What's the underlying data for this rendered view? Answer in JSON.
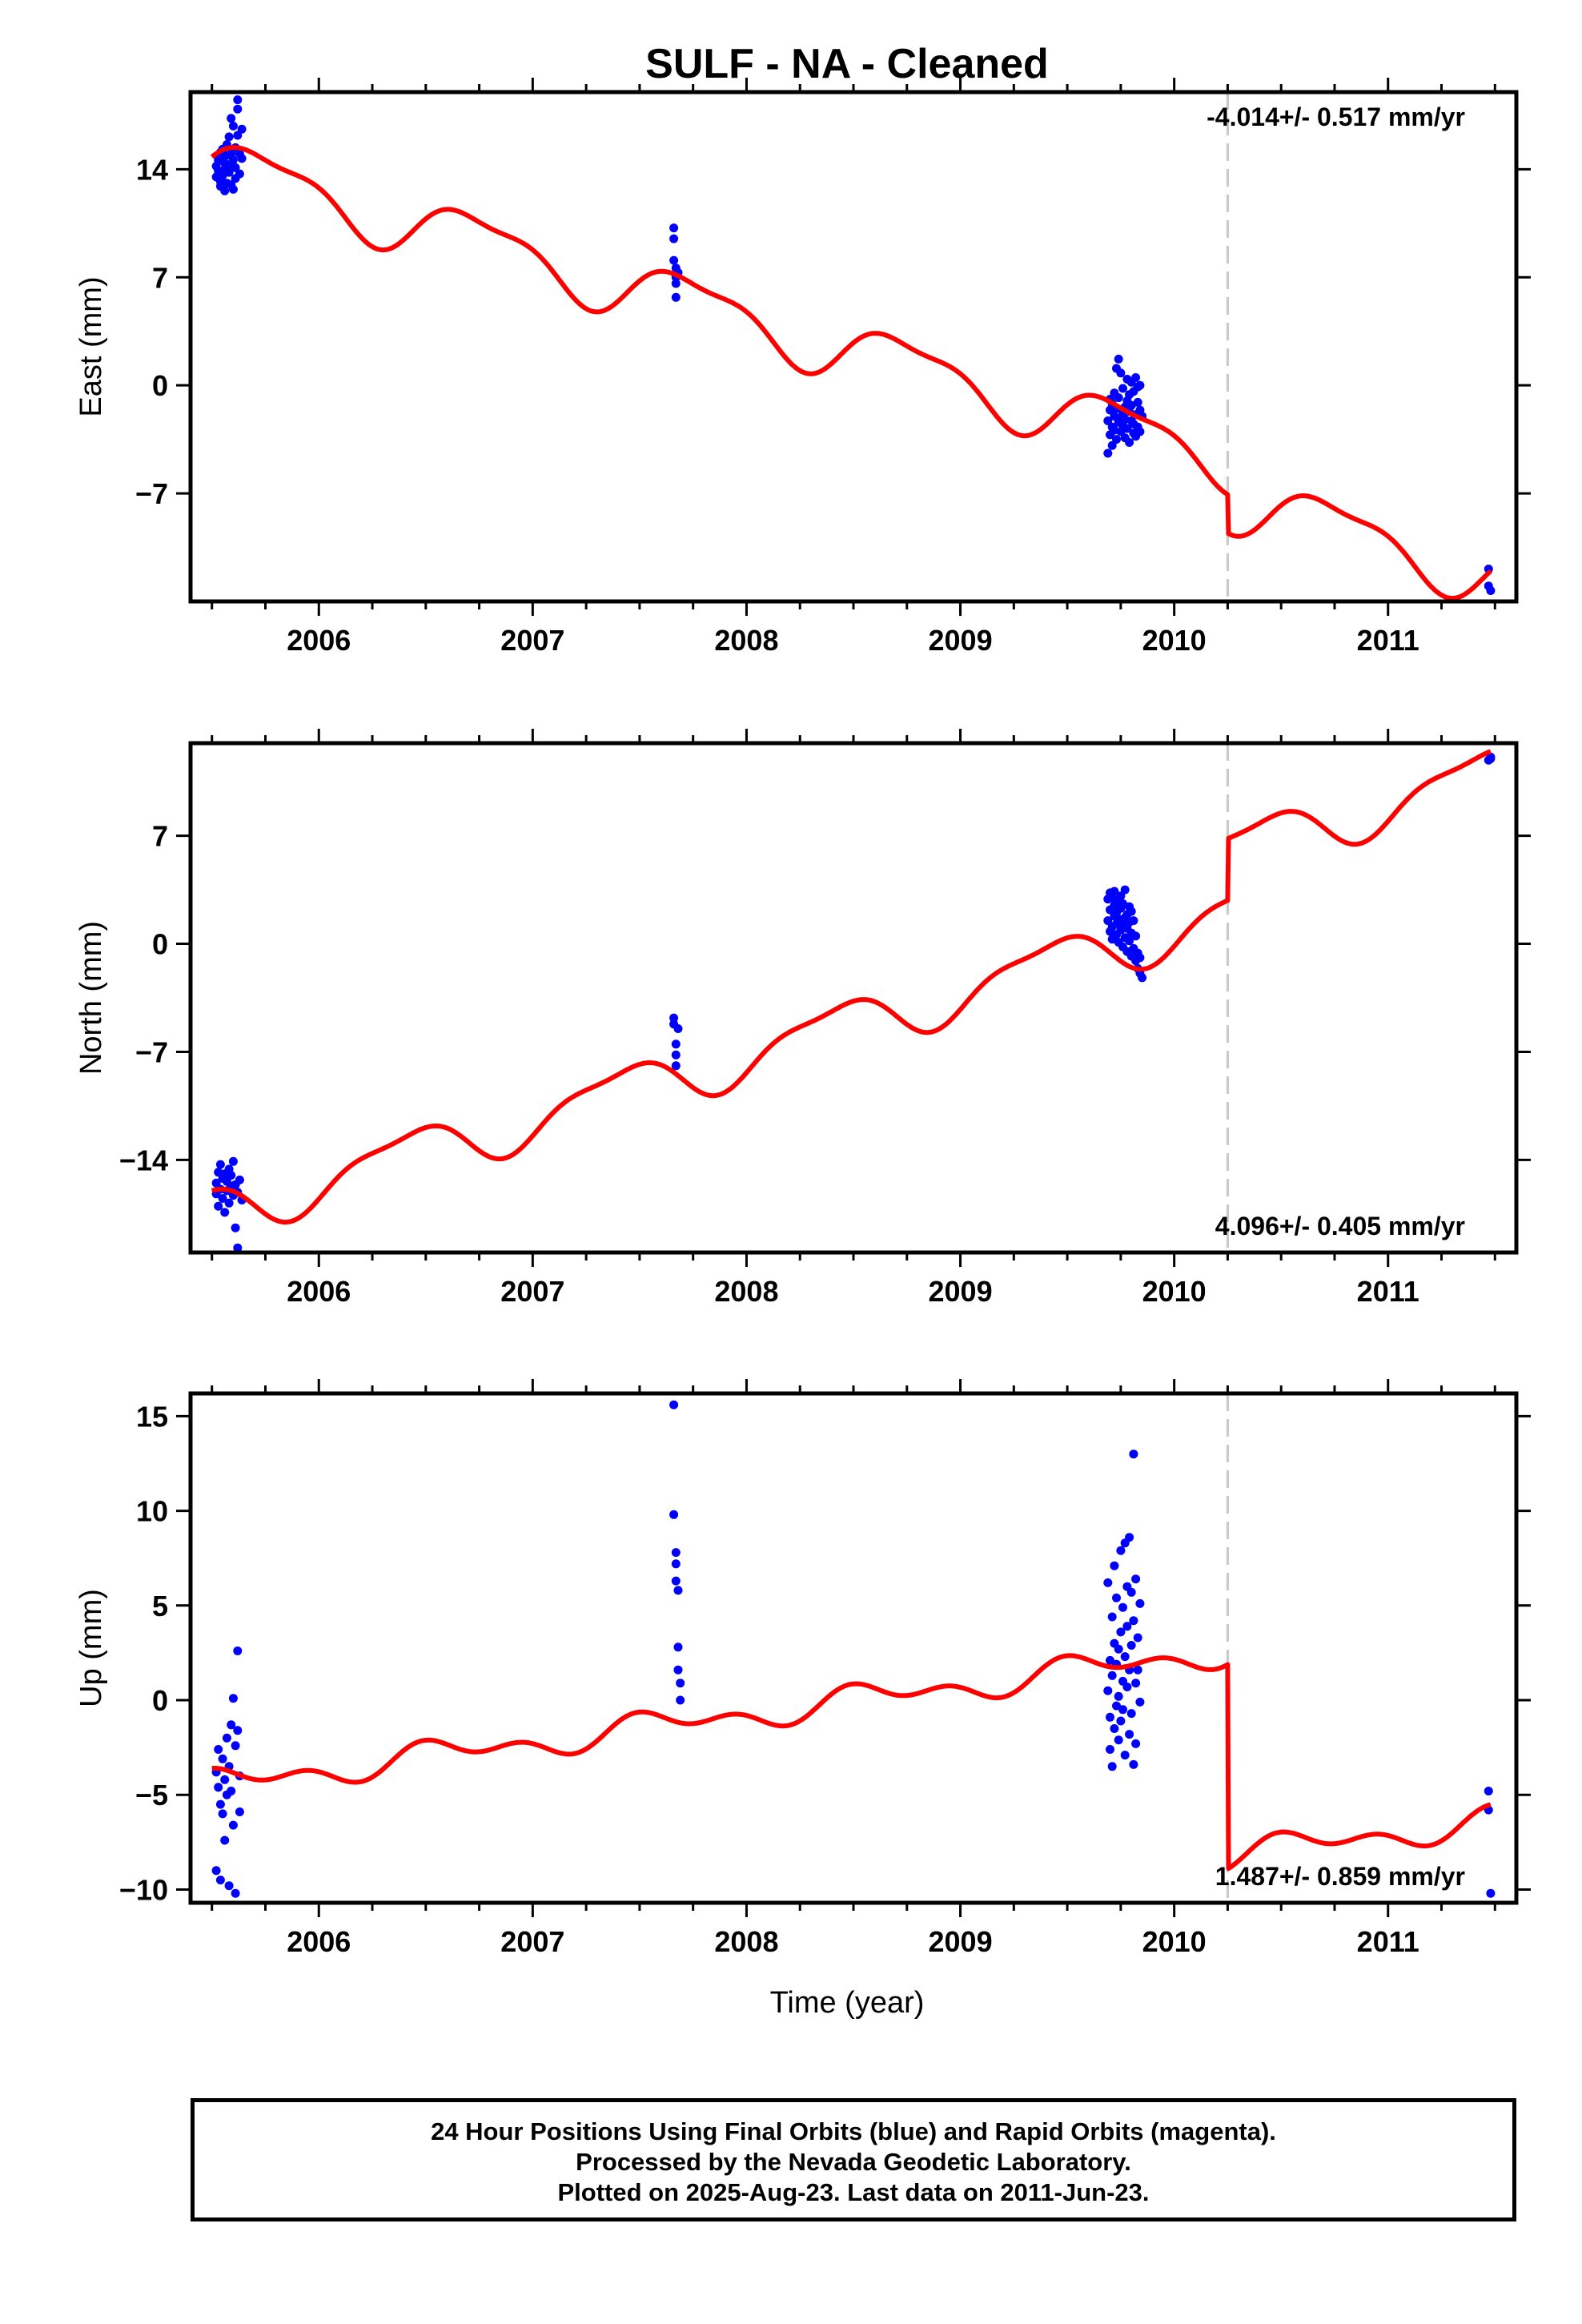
{
  "title": "SULF  - NA - Cleaned",
  "footer": {
    "line1": "24 Hour Positions Using Final Orbits (blue) and Rapid Orbits (magenta).",
    "line2": "Processed by the Nevada Geodetic Laboratory.",
    "line3": "Plotted on 2025-Aug-23. Last data on 2011-Jun-23."
  },
  "colors": {
    "data": "#0000ff",
    "model": "#ff0000",
    "step": "#c8c8c8",
    "axes": "#000000"
  },
  "chart_data": [
    {
      "type": "scatter",
      "panel": "east",
      "ylabel": "East (mm)",
      "xlim": [
        2005.4,
        2011.6
      ],
      "ylim": [
        -14,
        19
      ],
      "yticks": [
        -7,
        0,
        7,
        14
      ],
      "xticks": [
        2006,
        2007,
        2008,
        2009,
        2010,
        2011
      ],
      "grid": false,
      "rate_label": "-4.014+/- 0.517 mm/yr",
      "rate_label_position": "top-right",
      "step_x": 2010.25,
      "model": {
        "base": 14.8,
        "ref": 2005.5,
        "rate": -4.014,
        "a1": 1.8,
        "p1": 0.0,
        "a2": 0.6,
        "p2": 1.0,
        "step_at": 2010.25,
        "step": -2.5
      },
      "points": [
        [
          2005.52,
          13.5
        ],
        [
          2005.52,
          14.2
        ],
        [
          2005.53,
          13.9
        ],
        [
          2005.53,
          14.6
        ],
        [
          2005.54,
          12.9
        ],
        [
          2005.54,
          15.1
        ],
        [
          2005.54,
          13.2
        ],
        [
          2005.55,
          14.8
        ],
        [
          2005.55,
          13.6
        ],
        [
          2005.55,
          15.3
        ],
        [
          2005.56,
          14.0
        ],
        [
          2005.56,
          12.6
        ],
        [
          2005.56,
          14.4
        ],
        [
          2005.57,
          15.6
        ],
        [
          2005.57,
          13.1
        ],
        [
          2005.57,
          14.9
        ],
        [
          2005.58,
          13.8
        ],
        [
          2005.58,
          16.1
        ],
        [
          2005.58,
          14.3
        ],
        [
          2005.59,
          13.0
        ],
        [
          2005.59,
          15.0
        ],
        [
          2005.59,
          17.3
        ],
        [
          2005.6,
          14.6
        ],
        [
          2005.6,
          12.7
        ],
        [
          2005.6,
          16.8
        ],
        [
          2005.61,
          14.1
        ],
        [
          2005.61,
          15.4
        ],
        [
          2005.61,
          13.4
        ],
        [
          2005.62,
          17.9
        ],
        [
          2005.62,
          18.5
        ],
        [
          2005.62,
          16.2
        ],
        [
          2005.63,
          15.0
        ],
        [
          2005.63,
          13.7
        ],
        [
          2005.64,
          14.7
        ],
        [
          2005.64,
          16.6
        ],
        [
          2007.66,
          10.2
        ],
        [
          2007.66,
          9.5
        ],
        [
          2007.66,
          8.1
        ],
        [
          2007.67,
          7.6
        ],
        [
          2007.67,
          7.0
        ],
        [
          2007.67,
          6.6
        ],
        [
          2007.67,
          5.7
        ],
        [
          2007.68,
          7.3
        ],
        [
          2009.69,
          -4.4
        ],
        [
          2009.69,
          -2.3
        ],
        [
          2009.7,
          -1.6
        ],
        [
          2009.7,
          -3.2
        ],
        [
          2009.7,
          -0.9
        ],
        [
          2009.71,
          -2.7
        ],
        [
          2009.71,
          -1.2
        ],
        [
          2009.71,
          -3.9
        ],
        [
          2009.72,
          -2.0
        ],
        [
          2009.72,
          -0.5
        ],
        [
          2009.72,
          -2.9
        ],
        [
          2009.73,
          1.1
        ],
        [
          2009.73,
          -1.5
        ],
        [
          2009.73,
          -3.5
        ],
        [
          2009.74,
          -2.4
        ],
        [
          2009.74,
          1.7
        ],
        [
          2009.74,
          -0.8
        ],
        [
          2009.75,
          -2.1
        ],
        [
          2009.75,
          -3.0
        ],
        [
          2009.75,
          0.8
        ],
        [
          2009.76,
          -1.8
        ],
        [
          2009.76,
          -2.6
        ],
        [
          2009.76,
          -0.2
        ],
        [
          2009.77,
          -1.4
        ],
        [
          2009.77,
          -3.4
        ],
        [
          2009.77,
          -2.2
        ],
        [
          2009.78,
          0.4
        ],
        [
          2009.78,
          -1.0
        ],
        [
          2009.78,
          -2.8
        ],
        [
          2009.79,
          -1.7
        ],
        [
          2009.79,
          -3.7
        ],
        [
          2009.79,
          -0.6
        ],
        [
          2009.8,
          -2.3
        ],
        [
          2009.8,
          0.2
        ],
        [
          2009.8,
          -1.3
        ],
        [
          2009.81,
          -3.1
        ],
        [
          2009.81,
          -2.5
        ],
        [
          2009.81,
          -0.4
        ],
        [
          2009.82,
          -1.9
        ],
        [
          2009.82,
          0.5
        ],
        [
          2009.82,
          -3.3
        ],
        [
          2009.83,
          -1.1
        ],
        [
          2009.83,
          -2.7
        ],
        [
          2009.83,
          -0.1
        ],
        [
          2009.84,
          -1.6
        ],
        [
          2009.84,
          -3.0
        ],
        [
          2009.84,
          0.0
        ],
        [
          2009.85,
          -2.0
        ],
        [
          2011.47,
          -11.9
        ],
        [
          2011.47,
          -13.0
        ],
        [
          2011.48,
          -13.3
        ]
      ]
    },
    {
      "type": "scatter",
      "panel": "north",
      "ylabel": "North (mm)",
      "xlim": [
        2005.4,
        2011.6
      ],
      "ylim": [
        -20,
        13
      ],
      "yticks": [
        -14,
        -7,
        0,
        7
      ],
      "xticks": [
        2006,
        2007,
        2008,
        2009,
        2010,
        2011
      ],
      "grid": false,
      "rate_label": "4.096+/- 0.405 mm/yr",
      "rate_label_position": "bottom-right",
      "step_x": 2010.25,
      "model": {
        "base": -16.0,
        "ref": 2005.5,
        "rate": 4.096,
        "a1": 1.6,
        "p1": 2.2,
        "a2": 0.5,
        "p2": 0.3,
        "step_at": 2010.25,
        "step": 4.0
      },
      "points": [
        [
          2005.52,
          -15.5
        ],
        [
          2005.52,
          -16.2
        ],
        [
          2005.53,
          -14.8
        ],
        [
          2005.53,
          -17.0
        ],
        [
          2005.54,
          -15.9
        ],
        [
          2005.54,
          -14.3
        ],
        [
          2005.55,
          -16.5
        ],
        [
          2005.55,
          -15.2
        ],
        [
          2005.56,
          -17.4
        ],
        [
          2005.56,
          -14.9
        ],
        [
          2005.57,
          -16.0
        ],
        [
          2005.57,
          -15.4
        ],
        [
          2005.58,
          -14.6
        ],
        [
          2005.58,
          -16.8
        ],
        [
          2005.59,
          -15.7
        ],
        [
          2005.59,
          -15.0
        ],
        [
          2005.6,
          -16.3
        ],
        [
          2005.6,
          -14.1
        ],
        [
          2005.61,
          -15.6
        ],
        [
          2005.61,
          -18.4
        ],
        [
          2005.62,
          -16.1
        ],
        [
          2005.62,
          -19.7
        ],
        [
          2005.63,
          -15.3
        ],
        [
          2005.64,
          -16.6
        ],
        [
          2007.66,
          -4.8
        ],
        [
          2007.66,
          -5.2
        ],
        [
          2007.67,
          -6.5
        ],
        [
          2007.67,
          -7.2
        ],
        [
          2007.67,
          -7.9
        ],
        [
          2007.68,
          -5.5
        ],
        [
          2009.69,
          2.9
        ],
        [
          2009.69,
          1.5
        ],
        [
          2009.7,
          3.3
        ],
        [
          2009.7,
          0.8
        ],
        [
          2009.7,
          2.2
        ],
        [
          2009.71,
          1.1
        ],
        [
          2009.71,
          3.0
        ],
        [
          2009.71,
          0.3
        ],
        [
          2009.72,
          2.5
        ],
        [
          2009.72,
          1.8
        ],
        [
          2009.72,
          3.4
        ],
        [
          2009.73,
          0.6
        ],
        [
          2009.73,
          2.0
        ],
        [
          2009.73,
          1.3
        ],
        [
          2009.74,
          2.8
        ],
        [
          2009.74,
          0.1
        ],
        [
          2009.74,
          1.6
        ],
        [
          2009.75,
          3.1
        ],
        [
          2009.75,
          0.9
        ],
        [
          2009.75,
          2.3
        ],
        [
          2009.76,
          1.2
        ],
        [
          2009.76,
          -0.2
        ],
        [
          2009.76,
          2.6
        ],
        [
          2009.77,
          1.7
        ],
        [
          2009.77,
          0.4
        ],
        [
          2009.77,
          3.5
        ],
        [
          2009.78,
          1.9
        ],
        [
          2009.78,
          -0.5
        ],
        [
          2009.78,
          1.0
        ],
        [
          2009.79,
          2.4
        ],
        [
          2009.79,
          0.2
        ],
        [
          2009.79,
          1.4
        ],
        [
          2009.8,
          -0.8
        ],
        [
          2009.8,
          0.7
        ],
        [
          2009.8,
          2.1
        ],
        [
          2009.81,
          -0.3
        ],
        [
          2009.81,
          1.5
        ],
        [
          2009.82,
          -1.1
        ],
        [
          2009.82,
          0.5
        ],
        [
          2009.83,
          -0.6
        ],
        [
          2009.83,
          -1.6
        ],
        [
          2009.84,
          -1.9
        ],
        [
          2009.84,
          -0.9
        ],
        [
          2009.85,
          -2.2
        ],
        [
          2011.47,
          11.9
        ],
        [
          2011.48,
          12.1
        ],
        [
          2011.48,
          12.0
        ]
      ]
    },
    {
      "type": "scatter",
      "panel": "up",
      "ylabel": "Up (mm)",
      "xlabel": "Time (year)",
      "xlim": [
        2005.4,
        2011.6
      ],
      "ylim": [
        -10.7,
        16.2
      ],
      "yticks": [
        -10,
        -5,
        0,
        5,
        10,
        15
      ],
      "xticks": [
        2006,
        2007,
        2008,
        2009,
        2010,
        2011
      ],
      "grid": false,
      "rate_label": "1.487+/- 0.859 mm/yr",
      "rate_label_position": "bottom-right",
      "step_x": 2010.25,
      "model": {
        "base": -3.6,
        "ref": 2005.5,
        "rate": 1.487,
        "a1": 0.55,
        "p1": 1.0,
        "a2": 0.45,
        "p2": 2.0,
        "step_at": 2010.25,
        "step": -10.8
      },
      "points": [
        [
          2005.52,
          -3.8
        ],
        [
          2005.52,
          -9.0
        ],
        [
          2005.53,
          -4.6
        ],
        [
          2005.53,
          -2.6
        ],
        [
          2005.54,
          -5.5
        ],
        [
          2005.54,
          -9.5
        ],
        [
          2005.55,
          -3.1
        ],
        [
          2005.55,
          -6.0
        ],
        [
          2005.56,
          -4.2
        ],
        [
          2005.56,
          -7.4
        ],
        [
          2005.57,
          -2.0
        ],
        [
          2005.57,
          -5.0
        ],
        [
          2005.58,
          -9.8
        ],
        [
          2005.58,
          -3.5
        ],
        [
          2005.59,
          -1.3
        ],
        [
          2005.59,
          -4.8
        ],
        [
          2005.6,
          -6.6
        ],
        [
          2005.6,
          0.1
        ],
        [
          2005.61,
          -2.4
        ],
        [
          2005.61,
          -10.2
        ],
        [
          2005.62,
          2.6
        ],
        [
          2005.62,
          -1.6
        ],
        [
          2005.63,
          -4.0
        ],
        [
          2005.63,
          -5.9
        ],
        [
          2007.66,
          15.6
        ],
        [
          2007.66,
          9.8
        ],
        [
          2007.67,
          7.8
        ],
        [
          2007.67,
          7.2
        ],
        [
          2007.67,
          6.3
        ],
        [
          2007.68,
          5.8
        ],
        [
          2007.68,
          2.8
        ],
        [
          2007.68,
          1.6
        ],
        [
          2007.69,
          0.9
        ],
        [
          2007.69,
          0.0
        ],
        [
          2009.69,
          6.2
        ],
        [
          2009.69,
          0.5
        ],
        [
          2009.7,
          -2.6
        ],
        [
          2009.7,
          2.1
        ],
        [
          2009.7,
          -0.9
        ],
        [
          2009.71,
          4.4
        ],
        [
          2009.71,
          -3.5
        ],
        [
          2009.71,
          1.3
        ],
        [
          2009.72,
          7.1
        ],
        [
          2009.72,
          -1.5
        ],
        [
          2009.72,
          3.0
        ],
        [
          2009.73,
          -0.3
        ],
        [
          2009.73,
          5.4
        ],
        [
          2009.73,
          1.9
        ],
        [
          2009.74,
          -2.1
        ],
        [
          2009.74,
          2.7
        ],
        [
          2009.74,
          0.2
        ],
        [
          2009.75,
          7.9
        ],
        [
          2009.75,
          -1.1
        ],
        [
          2009.75,
          3.6
        ],
        [
          2009.76,
          4.9
        ],
        [
          2009.76,
          -0.5
        ],
        [
          2009.76,
          1.0
        ],
        [
          2009.77,
          8.3
        ],
        [
          2009.77,
          2.3
        ],
        [
          2009.77,
          -2.9
        ],
        [
          2009.78,
          6.0
        ],
        [
          2009.78,
          0.7
        ],
        [
          2009.78,
          3.9
        ],
        [
          2009.79,
          8.6
        ],
        [
          2009.79,
          -1.8
        ],
        [
          2009.79,
          1.6
        ],
        [
          2009.8,
          5.7
        ],
        [
          2009.8,
          -0.7
        ],
        [
          2009.8,
          2.9
        ],
        [
          2009.81,
          13.0
        ],
        [
          2009.81,
          4.2
        ],
        [
          2009.81,
          -3.4
        ],
        [
          2009.82,
          6.4
        ],
        [
          2009.82,
          0.9
        ],
        [
          2009.82,
          -2.3
        ],
        [
          2009.83,
          3.3
        ],
        [
          2009.83,
          1.6
        ],
        [
          2009.84,
          5.1
        ],
        [
          2009.84,
          -0.1
        ],
        [
          2011.47,
          -4.8
        ],
        [
          2011.47,
          -5.8
        ],
        [
          2011.48,
          -10.2
        ]
      ]
    }
  ]
}
